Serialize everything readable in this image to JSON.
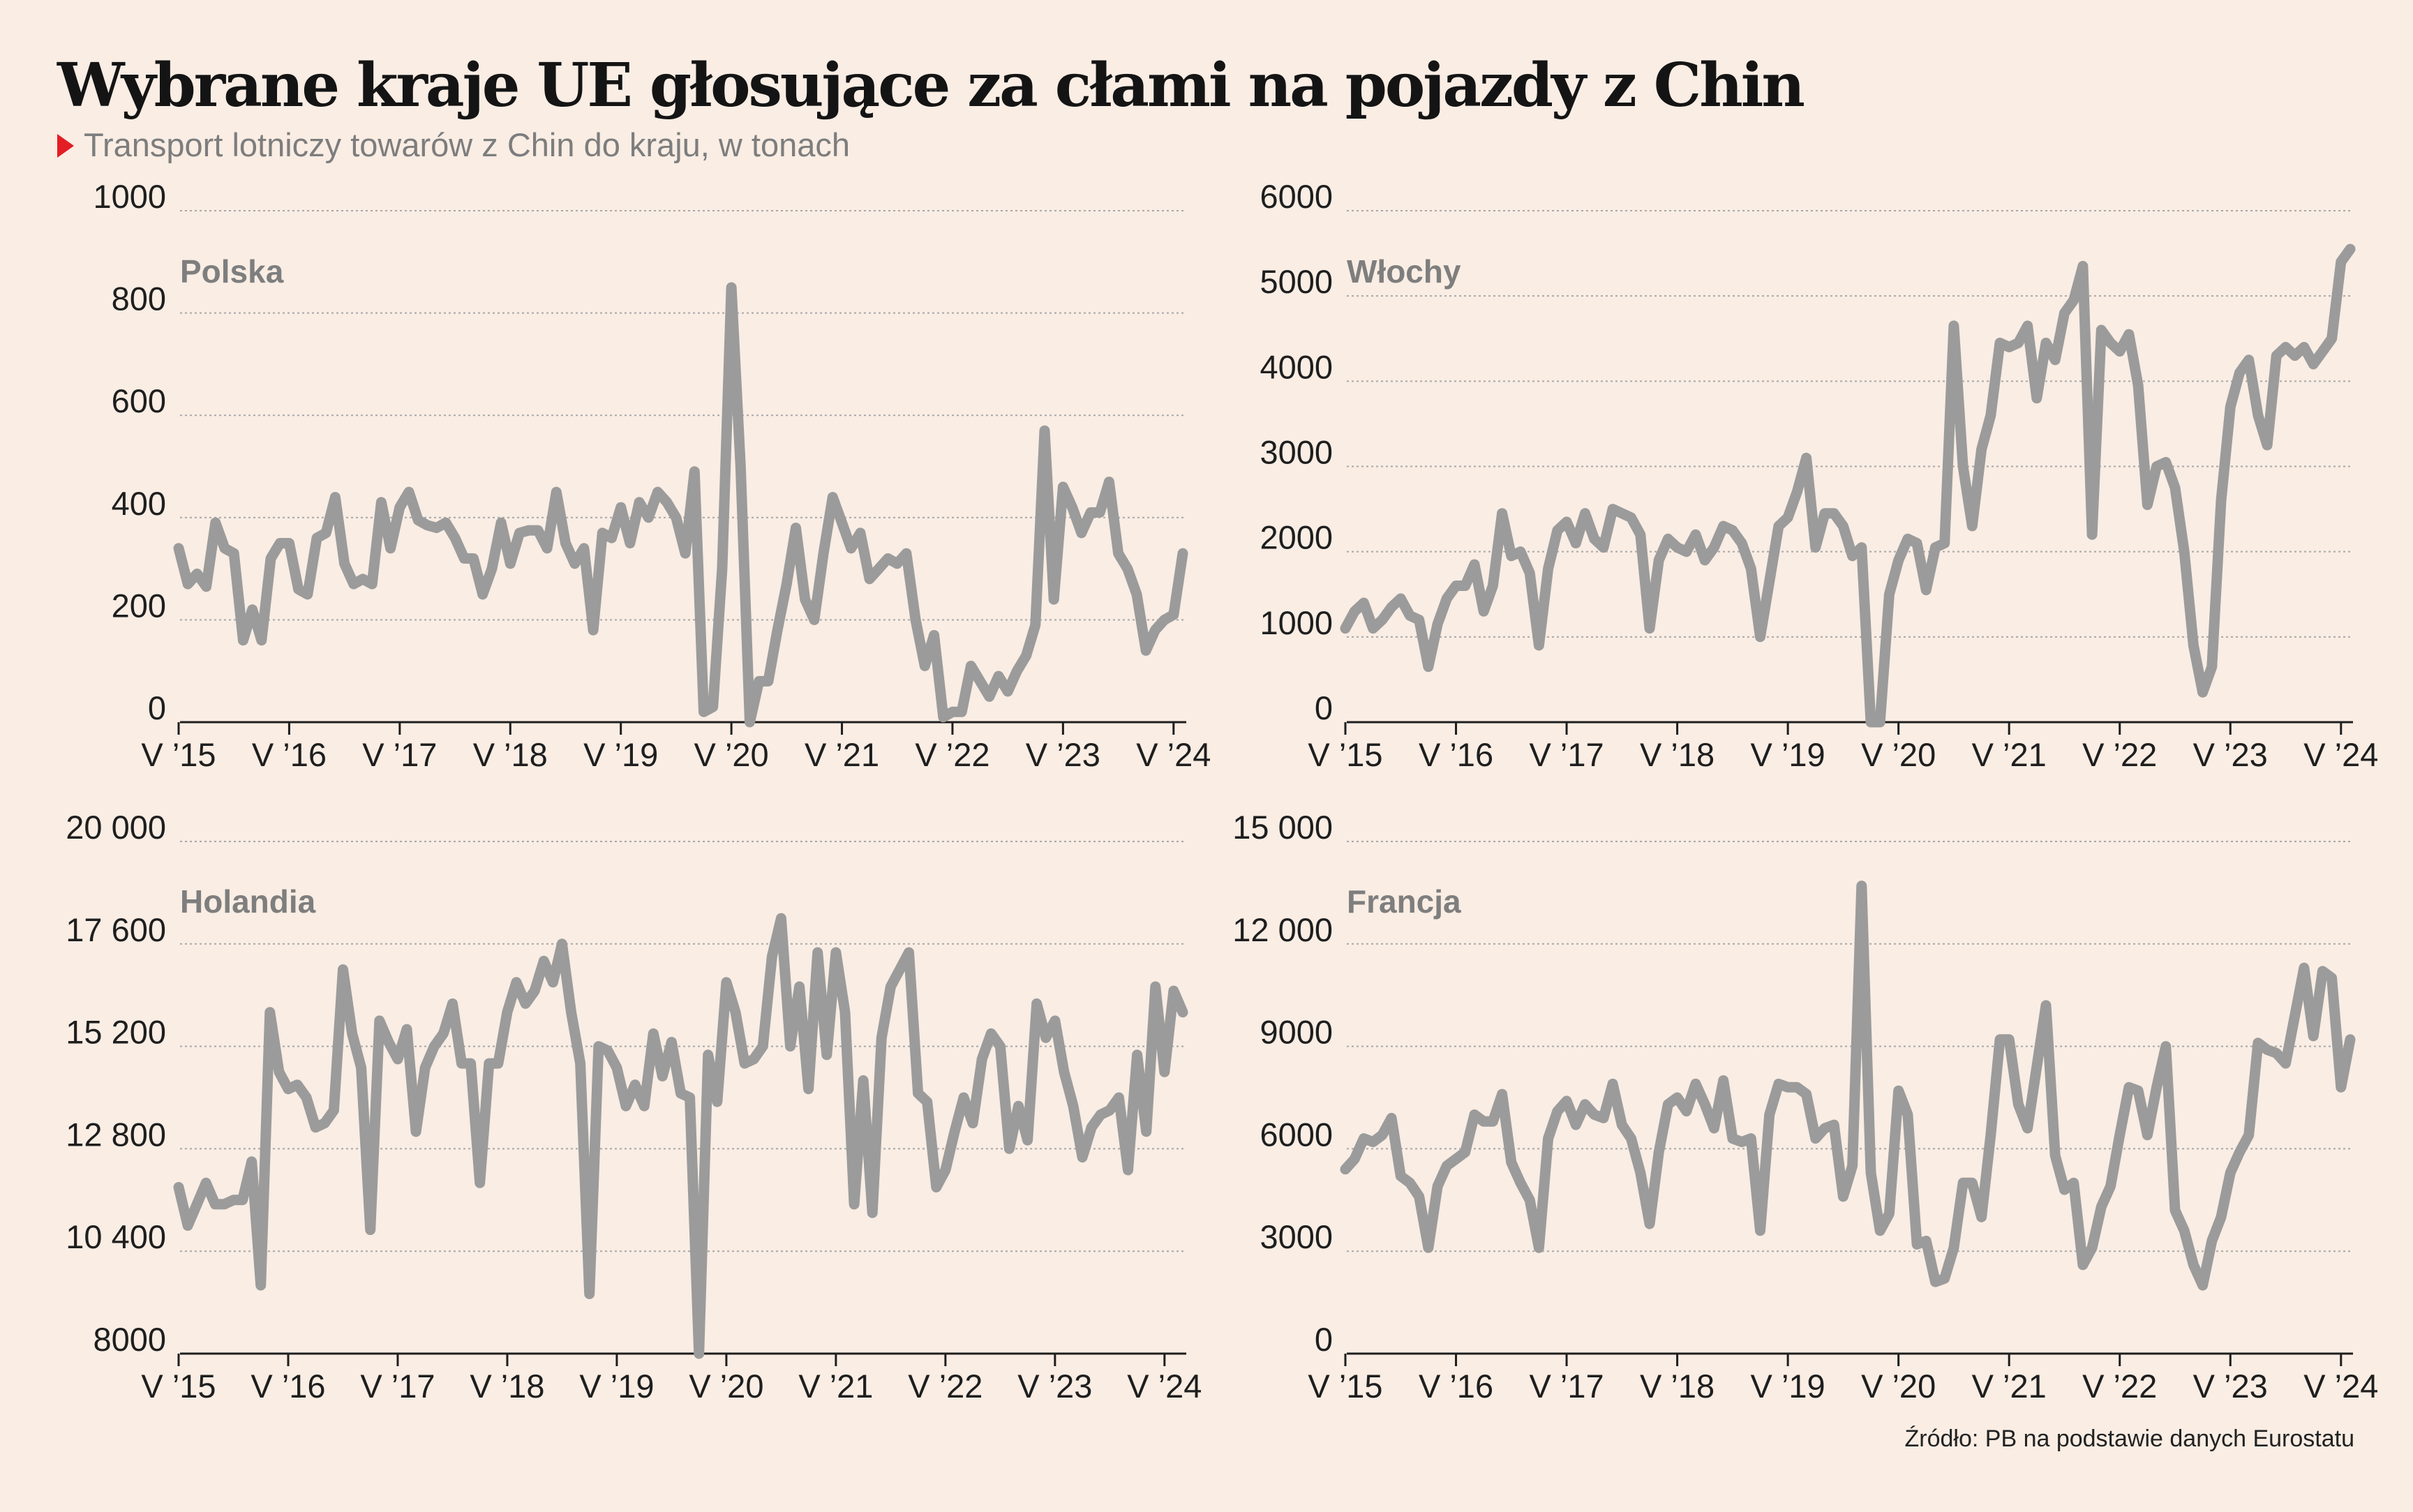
{
  "header": {
    "title": "Wybrane kraje UE głosujące za cłami na pojazdy z Chin",
    "subtitle": "Transport lotniczy towarów z Chin do kraju, w tonach"
  },
  "footer": {
    "source": "Źródło: PB na podstawie danych Eurostatu"
  },
  "colors": {
    "line": "#9b9b9b",
    "grid": "#a8a8a8",
    "axis": "#1e1e1e",
    "background": "#f9ede4",
    "accent": "#e31e24"
  },
  "chart_data": [
    {
      "type": "line",
      "title": "Polska",
      "x_tick_labels": [
        "V ’15",
        "V ’16",
        "V ’17",
        "V ’18",
        "V ’19",
        "V ’20",
        "V ’21",
        "V ’22",
        "V ’23",
        "V ’24"
      ],
      "y_tick_labels": [
        "0",
        "200",
        "400",
        "600",
        "800",
        "1000"
      ],
      "ylim": [
        0,
        1000
      ],
      "x_start": "2015-05",
      "x_end": "2024-07",
      "grid": true,
      "values": [
        340,
        270,
        290,
        265,
        390,
        340,
        330,
        160,
        220,
        160,
        320,
        350,
        350,
        260,
        250,
        360,
        370,
        440,
        310,
        270,
        280,
        270,
        430,
        340,
        420,
        450,
        395,
        385,
        380,
        390,
        360,
        320,
        320,
        250,
        300,
        390,
        310,
        370,
        375,
        375,
        340,
        450,
        350,
        310,
        340,
        180,
        370,
        360,
        420,
        350,
        430,
        400,
        450,
        430,
        400,
        330,
        490,
        20,
        30,
        300,
        850,
        500,
        0,
        80,
        80,
        180,
        270,
        380,
        240,
        200,
        330,
        440,
        390,
        340,
        370,
        280,
        300,
        320,
        310,
        330,
        200,
        110,
        170,
        10,
        20,
        20,
        110,
        80,
        50,
        90,
        60,
        100,
        130,
        190,
        570,
        240,
        460,
        420,
        370,
        410,
        410,
        470,
        330,
        300,
        250,
        140,
        180,
        200,
        210,
        330
      ]
    },
    {
      "type": "line",
      "title": "Włochy",
      "x_tick_labels": [
        "V ’15",
        "V ’16",
        "V ’17",
        "V ’18",
        "V ’19",
        "V ’20",
        "V ’21",
        "V ’22",
        "V ’23",
        "V ’24"
      ],
      "y_tick_labels": [
        "0",
        "1000",
        "2000",
        "3000",
        "4000",
        "5000",
        "6000"
      ],
      "ylim": [
        0,
        6000
      ],
      "x_start": "2015-05",
      "x_end": "2024-07",
      "grid": true,
      "values": [
        1100,
        1300,
        1400,
        1100,
        1200,
        1350,
        1450,
        1250,
        1200,
        650,
        1150,
        1450,
        1600,
        1600,
        1850,
        1300,
        1600,
        2450,
        1950,
        2000,
        1750,
        900,
        1800,
        2250,
        2350,
        2100,
        2450,
        2150,
        2050,
        2500,
        2450,
        2400,
        2200,
        1100,
        1900,
        2150,
        2050,
        2000,
        2200,
        1900,
        2050,
        2300,
        2250,
        2100,
        1800,
        1000,
        1650,
        2300,
        2400,
        2700,
        3100,
        2050,
        2450,
        2450,
        2300,
        1950,
        2050,
        0,
        0,
        1500,
        1900,
        2150,
        2100,
        1550,
        2050,
        2100,
        4650,
        3000,
        2300,
        3200,
        3600,
        4450,
        4400,
        4450,
        4650,
        3800,
        4450,
        4250,
        4800,
        4950,
        5350,
        2200,
        4600,
        4450,
        4350,
        4550,
        3950,
        2550,
        3000,
        3050,
        2750,
        2000,
        900,
        350,
        650,
        2600,
        3700,
        4100,
        4250,
        3600,
        3250,
        4300,
        4400,
        4300,
        4400,
        4200,
        4350,
        4500,
        5400,
        5550
      ]
    },
    {
      "type": "line",
      "title": "Holandia",
      "x_tick_labels": [
        "V ’15",
        "V ’16",
        "V ’17",
        "V ’18",
        "V ’19",
        "V ’20",
        "V ’21",
        "V ’22",
        "V ’23",
        "V ’24"
      ],
      "y_tick_labels": [
        "8000",
        "10 400",
        "12 800",
        "15 200",
        "17 600",
        "20 000"
      ],
      "ylim": [
        8000,
        20000
      ],
      "x_start": "2015-05",
      "x_end": "2024-07",
      "grid": true,
      "values": [
        11900,
        11000,
        11500,
        12000,
        11500,
        11500,
        11600,
        11600,
        12500,
        9600,
        16000,
        14600,
        14200,
        14300,
        14000,
        13300,
        13400,
        13700,
        17000,
        15500,
        14700,
        10900,
        15800,
        15300,
        14900,
        15600,
        13200,
        14700,
        15200,
        15500,
        16200,
        14800,
        14800,
        12000,
        14800,
        14800,
        16000,
        16700,
        16200,
        16500,
        17200,
        16700,
        17600,
        16000,
        14800,
        9400,
        15200,
        15100,
        14700,
        13800,
        14300,
        13800,
        15500,
        14500,
        15300,
        14100,
        14000,
        8000,
        15000,
        13900,
        16700,
        16000,
        14800,
        14900,
        15200,
        17300,
        18200,
        15200,
        16600,
        14200,
        17400,
        15000,
        17400,
        16000,
        11500,
        14400,
        11300,
        15400,
        16600,
        17000,
        17400,
        14100,
        13900,
        11900,
        12300,
        13200,
        14000,
        13400,
        14900,
        15500,
        15200,
        12800,
        13800,
        13000,
        16200,
        15400,
        15800,
        14600,
        13800,
        12600,
        13300,
        13600,
        13700,
        14000,
        12300,
        15000,
        13200,
        16600,
        14600,
        16500,
        16000
      ]
    },
    {
      "type": "line",
      "title": "Francja",
      "x_tick_labels": [
        "V ’15",
        "V ’16",
        "V ’17",
        "V ’18",
        "V ’19",
        "V ’20",
        "V ’21",
        "V ’22",
        "V ’23",
        "V ’24"
      ],
      "y_tick_labels": [
        "0",
        "3000",
        "6000",
        "9000",
        "12 000",
        "15 000"
      ],
      "ylim": [
        0,
        15000
      ],
      "x_start": "2015-05",
      "x_end": "2024-07",
      "grid": true,
      "values": [
        5400,
        5700,
        6300,
        6200,
        6400,
        6900,
        5200,
        5000,
        4600,
        3100,
        4900,
        5500,
        5700,
        5900,
        7000,
        6800,
        6800,
        7600,
        5600,
        5000,
        4500,
        3100,
        6300,
        7100,
        7400,
        6700,
        7300,
        7000,
        6900,
        7900,
        6700,
        6300,
        5300,
        3800,
        5900,
        7300,
        7500,
        7100,
        7900,
        7300,
        6600,
        8000,
        6300,
        6200,
        6300,
        3600,
        7000,
        7900,
        7800,
        7800,
        7600,
        6300,
        6600,
        6700,
        4600,
        5500,
        13700,
        5300,
        3600,
        4100,
        7700,
        7000,
        3200,
        3300,
        2100,
        2200,
        3100,
        5000,
        5000,
        4000,
        6400,
        9200,
        9200,
        7300,
        6600,
        8400,
        10200,
        5800,
        4800,
        5000,
        2600,
        3100,
        4300,
        4900,
        6400,
        7800,
        7700,
        6400,
        7800,
        9000,
        4200,
        3600,
        2600,
        2000,
        3300,
        4000,
        5300,
        5900,
        6400,
        9100,
        8900,
        8800,
        8500,
        9900,
        11300,
        9300,
        11200,
        11000,
        7800,
        9200
      ]
    }
  ]
}
